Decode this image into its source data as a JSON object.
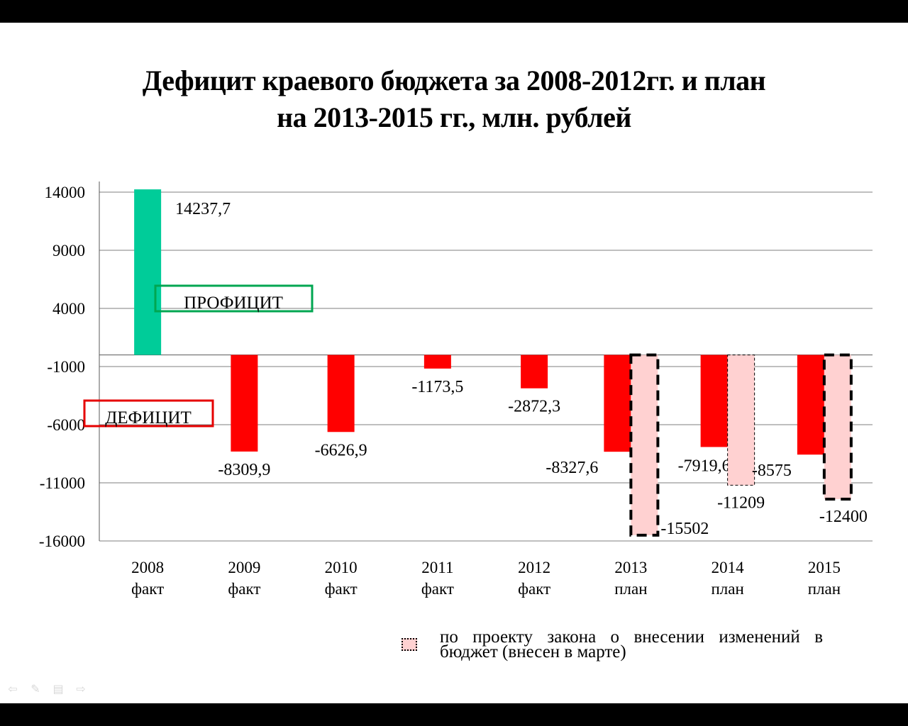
{
  "title_lines": [
    "Дефицит краевого бюджета за 2008-2012гг. и план",
    "на 2013-2015 гг., млн. рублей"
  ],
  "colors": {
    "surplus": "#00cc99",
    "deficit": "#ff0000",
    "amended": "#ffd1d1",
    "grid": "#7f7f7f",
    "surplus_box": "#00a651",
    "deficit_box": "#e60000"
  },
  "annotations": {
    "surplus_label": "ПРОФИЦИТ",
    "deficit_label": "ДЕФИЦИТ"
  },
  "legend": {
    "text": "по проекту закона о внесении изменений в бюджет (внесен в марте)"
  },
  "nav": {
    "icons": [
      "back-arrow-icon",
      "pen-icon",
      "menu-icon",
      "forward-arrow-icon"
    ]
  },
  "chart_data": {
    "type": "bar",
    "categories": [
      {
        "year": "2008",
        "status": "факт"
      },
      {
        "year": "2009",
        "status": "факт"
      },
      {
        "year": "2010",
        "status": "факт"
      },
      {
        "year": "2011",
        "status": "факт"
      },
      {
        "year": "2012",
        "status": "факт"
      },
      {
        "year": "2013",
        "status": "план"
      },
      {
        "year": "2014",
        "status": "план"
      },
      {
        "year": "2015",
        "status": "план"
      }
    ],
    "series": [
      {
        "values": [
          14237.7,
          -8309.9,
          -6626.9,
          -1173.5,
          -2872.3,
          -8327.6,
          -7919.6,
          -8575
        ],
        "labels": [
          "14237,7",
          "-8309,9",
          "-6626,9",
          "-1173,5",
          "-2872,3",
          "-8327,6",
          "-7919,6",
          "-8575"
        ]
      },
      {
        "name": "по проекту закона о внесении изменений в бюджет (внесен в марте)",
        "values": [
          null,
          null,
          null,
          null,
          null,
          -15502,
          -11209,
          -12400
        ],
        "labels": [
          "",
          "",
          "",
          "",
          "",
          "-15502",
          "-11209",
          "-12400"
        ]
      }
    ],
    "y_ticks": [
      {
        "value": 14000,
        "label": "14000"
      },
      {
        "value": 9000,
        "label": "9000"
      },
      {
        "value": 4000,
        "label": "4000"
      },
      {
        "value": -1000,
        "label": "-1000"
      },
      {
        "value": -6000,
        "label": "-6000"
      },
      {
        "value": -11000,
        "label": "-11000"
      },
      {
        "value": -16000,
        "label": "-16000"
      }
    ],
    "ylim": [
      -16000,
      14000
    ],
    "grid": true,
    "xlabel": "",
    "ylabel": ""
  }
}
